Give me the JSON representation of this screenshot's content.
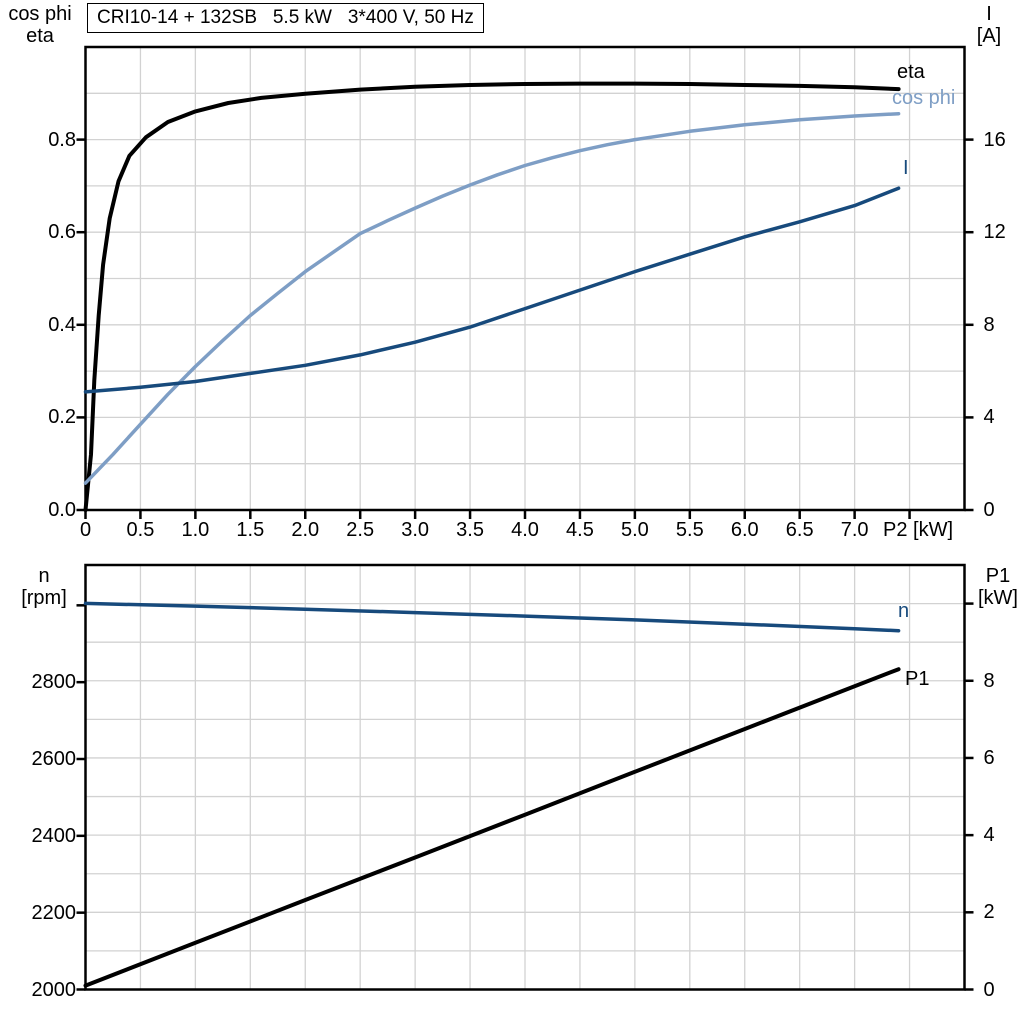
{
  "colors": {
    "grid": "#d2d2d2",
    "frame": "#000000",
    "black_curve": "#000000",
    "light_blue_curve": "#7e9ec5",
    "dark_blue_curve": "#174a7c"
  },
  "corner_labels": {
    "top_left_line1": "cos phi",
    "top_left_line2": "eta",
    "top_right_line1": "I",
    "top_right_line2": "[A]",
    "bottom_left_line1": "n",
    "bottom_left_line2": "[rpm]",
    "bottom_right_line1": "P1",
    "bottom_right_line2": "[kW]"
  },
  "chart_data": [
    {
      "type": "line",
      "title": "CRI10-14 + 132SB   5.5 kW   3*400 V, 50 Hz",
      "xlabel": "P2 [kW]",
      "x_axis": {
        "lim": [
          0,
          8
        ],
        "grid_step": 0.5,
        "ticks": [
          {
            "v": 0,
            "label": "0"
          },
          {
            "v": 0.5,
            "label": "0.5"
          },
          {
            "v": 1,
            "label": "1.0"
          },
          {
            "v": 1.5,
            "label": "1.5"
          },
          {
            "v": 2,
            "label": "2.0"
          },
          {
            "v": 2.5,
            "label": "2.5"
          },
          {
            "v": 3,
            "label": "3.0"
          },
          {
            "v": 3.5,
            "label": "3.5"
          },
          {
            "v": 4,
            "label": "4.0"
          },
          {
            "v": 4.5,
            "label": "4.5"
          },
          {
            "v": 5,
            "label": "5.0"
          },
          {
            "v": 5.5,
            "label": "5.5"
          },
          {
            "v": 6,
            "label": "6.0"
          },
          {
            "v": 6.5,
            "label": "6.5"
          },
          {
            "v": 7,
            "label": "7.0"
          },
          {
            "v": 7.5,
            "label": ""
          }
        ]
      },
      "left_axis": {
        "label": "cos phi / eta",
        "lim": [
          0,
          1.0
        ],
        "ticks": [
          {
            "v": 0.8,
            "label": "0.8"
          },
          {
            "v": 0.6,
            "label": "0.6"
          },
          {
            "v": 0.4,
            "label": "0.4"
          },
          {
            "v": 0.2,
            "label": "0.2"
          },
          {
            "v": 0.0,
            "label": "0.0"
          }
        ]
      },
      "right_axis": {
        "label": "I [A]",
        "lim": [
          0,
          20
        ],
        "grid_step": 2,
        "ticks": [
          {
            "v": 16,
            "label": "16"
          },
          {
            "v": 12,
            "label": "12"
          },
          {
            "v": 8,
            "label": "8"
          },
          {
            "v": 4,
            "label": "4"
          },
          {
            "v": 0,
            "label": "0"
          }
        ]
      },
      "series": [
        {
          "name": "eta",
          "label": "eta",
          "axis": "left",
          "color": "#000000",
          "width": 4,
          "points": [
            [
              0,
              0
            ],
            [
              0.05,
              0.12
            ],
            [
              0.08,
              0.28
            ],
            [
              0.12,
              0.42
            ],
            [
              0.16,
              0.53
            ],
            [
              0.22,
              0.63
            ],
            [
              0.3,
              0.71
            ],
            [
              0.4,
              0.765
            ],
            [
              0.55,
              0.805
            ],
            [
              0.75,
              0.838
            ],
            [
              1.0,
              0.861
            ],
            [
              1.3,
              0.879
            ],
            [
              1.6,
              0.89
            ],
            [
              2.0,
              0.899
            ],
            [
              2.5,
              0.908
            ],
            [
              3.0,
              0.914
            ],
            [
              3.5,
              0.918
            ],
            [
              4.0,
              0.92
            ],
            [
              4.5,
              0.921
            ],
            [
              5.0,
              0.921
            ],
            [
              5.5,
              0.92
            ],
            [
              6.0,
              0.918
            ],
            [
              6.5,
              0.916
            ],
            [
              7.0,
              0.913
            ],
            [
              7.4,
              0.909
            ]
          ]
        },
        {
          "name": "cos-phi",
          "label": "cos phi",
          "axis": "left",
          "color": "#7e9ec5",
          "width": 3.5,
          "points": [
            [
              0,
              0.058
            ],
            [
              0.25,
              0.12
            ],
            [
              0.5,
              0.185
            ],
            [
              0.75,
              0.25
            ],
            [
              1.0,
              0.31
            ],
            [
              1.25,
              0.366
            ],
            [
              1.5,
              0.42
            ],
            [
              1.75,
              0.468
            ],
            [
              2.0,
              0.515
            ],
            [
              2.25,
              0.556
            ],
            [
              2.5,
              0.597
            ],
            [
              2.75,
              0.625
            ],
            [
              3.0,
              0.652
            ],
            [
              3.25,
              0.678
            ],
            [
              3.5,
              0.702
            ],
            [
              3.75,
              0.724
            ],
            [
              4.0,
              0.744
            ],
            [
              4.25,
              0.761
            ],
            [
              4.5,
              0.776
            ],
            [
              4.75,
              0.789
            ],
            [
              5.0,
              0.8
            ],
            [
              5.5,
              0.818
            ],
            [
              6.0,
              0.832
            ],
            [
              6.5,
              0.843
            ],
            [
              7.0,
              0.851
            ],
            [
              7.4,
              0.856
            ]
          ]
        },
        {
          "name": "current",
          "label": "I",
          "axis": "right",
          "color": "#174a7c",
          "width": 3.5,
          "points": [
            [
              0,
              5.1
            ],
            [
              0.5,
              5.3
            ],
            [
              1.0,
              5.55
            ],
            [
              1.5,
              5.9
            ],
            [
              2.0,
              6.25
            ],
            [
              2.5,
              6.7
            ],
            [
              3.0,
              7.25
            ],
            [
              3.5,
              7.9
            ],
            [
              4.0,
              8.7
            ],
            [
              4.5,
              9.5
            ],
            [
              5.0,
              10.3
            ],
            [
              5.5,
              11.05
            ],
            [
              6.0,
              11.8
            ],
            [
              6.5,
              12.45
            ],
            [
              7.0,
              13.15
            ],
            [
              7.4,
              13.9
            ]
          ]
        }
      ]
    },
    {
      "type": "line",
      "title": "",
      "xlabel": "",
      "x_axis": {
        "lim": [
          0,
          8
        ],
        "grid_step": 0.5,
        "ticks": []
      },
      "left_axis": {
        "label": "n [rpm]",
        "lim": [
          2000,
          3105
        ],
        "ticks": [
          {
            "v": 3000,
            "label": ""
          },
          {
            "v": 2800,
            "label": "2800"
          },
          {
            "v": 2600,
            "label": "2600"
          },
          {
            "v": 2400,
            "label": "2400"
          },
          {
            "v": 2200,
            "label": "2200"
          },
          {
            "v": 2000,
            "label": "2000"
          }
        ]
      },
      "right_axis": {
        "label": "P1 [kW]",
        "lim": [
          0,
          11
        ],
        "grid_step": 1,
        "ticks": [
          {
            "v": 10,
            "label": ""
          },
          {
            "v": 8,
            "label": "8"
          },
          {
            "v": 6,
            "label": "6"
          },
          {
            "v": 4,
            "label": "4"
          },
          {
            "v": 2,
            "label": "2"
          },
          {
            "v": 0,
            "label": "0"
          }
        ]
      },
      "series": [
        {
          "name": "speed",
          "label": "n",
          "axis": "left",
          "color": "#174a7c",
          "width": 3.5,
          "points": [
            [
              0,
              3005
            ],
            [
              1,
              2998
            ],
            [
              2,
              2990
            ],
            [
              3,
              2981
            ],
            [
              4,
              2972
            ],
            [
              5,
              2962
            ],
            [
              6,
              2951
            ],
            [
              7,
              2939
            ],
            [
              7.4,
              2934
            ]
          ]
        },
        {
          "name": "input-power",
          "label": "P1",
          "axis": "right",
          "color": "#000000",
          "width": 4,
          "points": [
            [
              0,
              0.1
            ],
            [
              1,
              1.21
            ],
            [
              2,
              2.32
            ],
            [
              3,
              3.42
            ],
            [
              4,
              4.53
            ],
            [
              5,
              5.64
            ],
            [
              6,
              6.75
            ],
            [
              7,
              7.86
            ],
            [
              7.4,
              8.3
            ]
          ]
        }
      ]
    }
  ]
}
